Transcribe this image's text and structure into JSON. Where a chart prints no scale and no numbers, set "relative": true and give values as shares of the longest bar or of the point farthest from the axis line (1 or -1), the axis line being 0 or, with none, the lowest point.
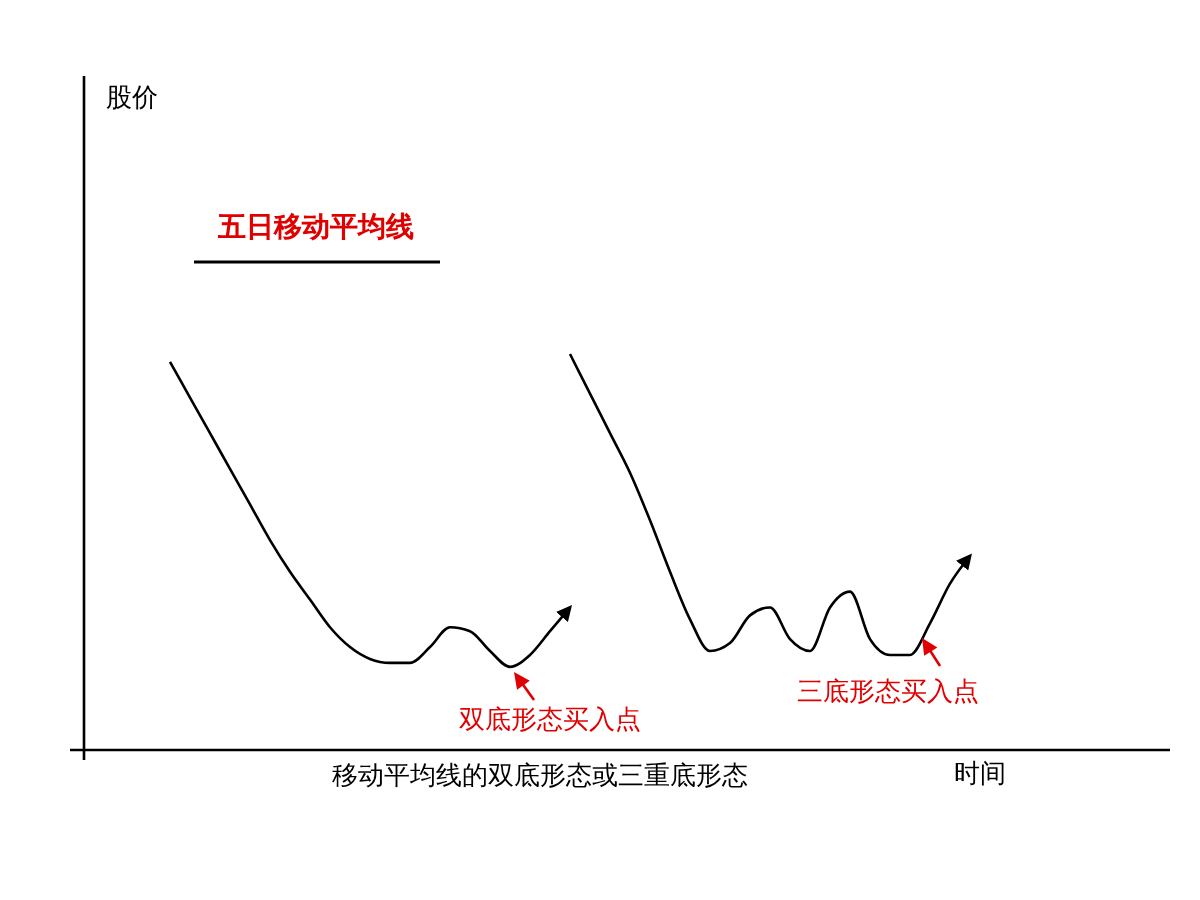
{
  "chart_data": {
    "type": "line",
    "relative": true,
    "title": "移动平均线的双底形态或三重底形态",
    "xlabel": "时间",
    "legend": "top left",
    "marker": "none",
    "line_style": "solid",
    "categories": [
      null,
      null,
      null,
      null,
      null,
      null,
      null,
      null,
      null,
      null,
      null,
      null,
      null,
      null,
      null,
      null,
      null,
      null,
      null,
      null,
      null,
      null,
      null,
      null,
      null,
      null,
      null,
      null,
      null,
      null,
      null,
      null,
      null,
      null,
      null,
      null,
      null,
      null,
      null,
      null,
      null
    ],
    "series": [
      {
        "name": "五日移动平均线",
        "color": "#000000",
        "values": [
          0.98,
          0.89,
          0.8,
          0.71,
          0.62,
          0.53,
          0.45,
          0.38,
          0.31,
          0.26,
          0.23,
          0.22,
          0.22,
          0.26,
          0.31,
          0.3,
          0.25,
          0.21,
          0.24,
          0.3,
          0.36,
          null,
          null,
          null,
          null,
          null,
          null,
          null,
          null,
          null,
          null,
          null,
          null,
          null,
          null,
          null,
          null,
          null,
          null,
          null,
          null
        ]
      },
      {
        "color": "#000000",
        "values": [
          null,
          null,
          null,
          null,
          null,
          null,
          null,
          null,
          null,
          null,
          null,
          null,
          null,
          null,
          null,
          null,
          null,
          null,
          null,
          null,
          1.0,
          0.9,
          0.8,
          0.7,
          0.58,
          0.45,
          0.33,
          0.25,
          0.27,
          0.34,
          0.36,
          0.28,
          0.25,
          0.36,
          0.4,
          0.28,
          0.24,
          0.24,
          0.32,
          0.42,
          0.49
        ]
      }
    ],
    "annotations": [
      "股价",
      "双底形态买入点",
      "三底形态买入点"
    ]
  }
}
